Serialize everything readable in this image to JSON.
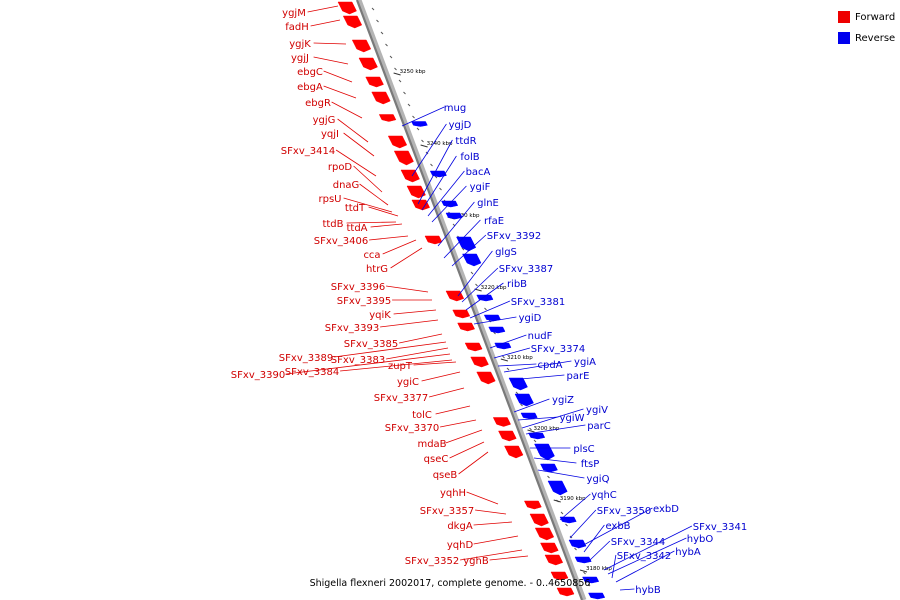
{
  "legend": {
    "forward_label": "Forward",
    "reverse_label": "Reverse",
    "forward_color": "#ff0000",
    "reverse_color": "#0000ff"
  },
  "caption": "Shigella flexneri 2002017, complete genome. - 0..4650856",
  "scale_ticks": [
    "3250 kbp",
    "3240 kbp",
    "3230 kbp",
    "3220 kbp",
    "3210 kbp",
    "3200 kbp",
    "3190 kbp",
    "3180 kbp"
  ],
  "forward_genes": [
    "ygjM",
    "fadH",
    "ygjK",
    "ygjJ",
    "ebgC",
    "ebgA",
    "ebgR",
    "ygjG",
    "yqjI",
    "SFxv_3414",
    "rpoD",
    "dnaG",
    "rpsU",
    "ttdT",
    "ttdB",
    "ttdA",
    "SFxv_3406",
    "cca",
    "htrG",
    "SFxv_3396",
    "SFxv_3395",
    "yqiK",
    "SFxv_3393",
    "SFxv_3385",
    "SFxv_3389",
    "SFxv_3383",
    "SFxv_3390",
    "SFxv_3384",
    "zupT",
    "ygiC",
    "SFxv_3377",
    "tolC",
    "SFxv_3370",
    "mdaB",
    "qseC",
    "qseB",
    "yqhH",
    "SFxv_3357",
    "dkgA",
    "yqhD",
    "SFxv_3352",
    "yghB"
  ],
  "reverse_genes": [
    "mug",
    "ygjD",
    "ttdR",
    "folB",
    "bacA",
    "ygiF",
    "glnE",
    "rfaE",
    "SFxv_3392",
    "glgS",
    "SFxv_3387",
    "ribB",
    "SFxv_3381",
    "ygiD",
    "nudF",
    "SFxv_3374",
    "cpdA",
    "ygiA",
    "parE",
    "ygiZ",
    "ygiW",
    "ygiV",
    "parC",
    "plsC",
    "ftsP",
    "ygiQ",
    "yqhC",
    "SFxv_3350",
    "exbD",
    "exbB",
    "SFxv_3344",
    "SFxv_3341",
    "hybO",
    "SFxv_3342",
    "hybA",
    "hybB"
  ]
}
